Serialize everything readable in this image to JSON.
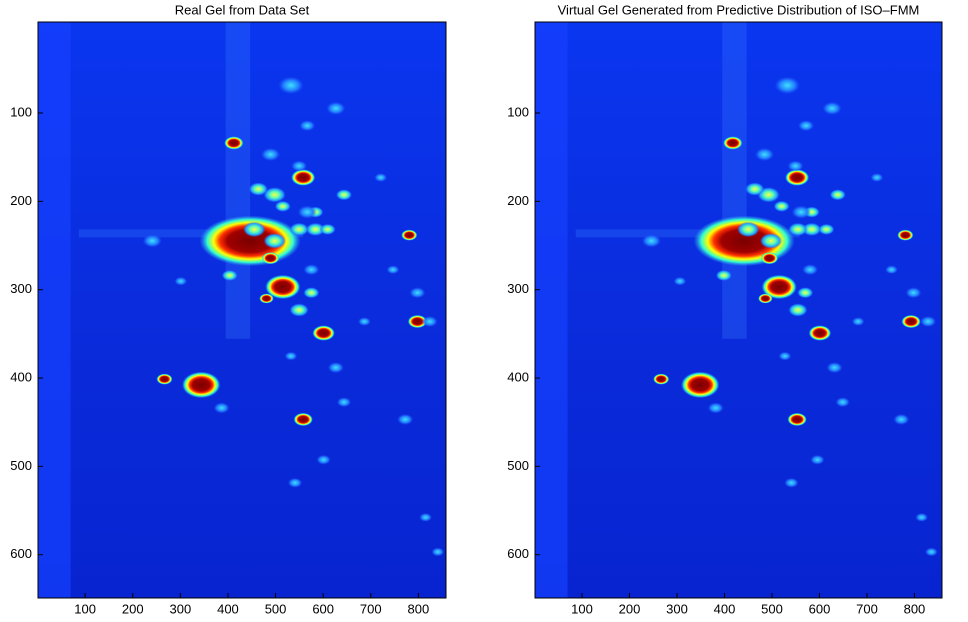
{
  "chart_data": [
    {
      "type": "heatmap",
      "title": "Real Gel from Data Set",
      "xlim": [
        1,
        858
      ],
      "ylim": [
        649,
        -3
      ],
      "xticks": [
        100,
        200,
        300,
        400,
        500,
        600,
        700,
        800
      ],
      "yticks": [
        100,
        200,
        300,
        400,
        500,
        600
      ]
    },
    {
      "type": "heatmap",
      "title": "Virtual Gel Generated from Predictive Distribution of ISO–FMM",
      "xlim": [
        1,
        858
      ],
      "ylim": [
        649,
        -3
      ],
      "xticks": [
        100,
        200,
        300,
        400,
        500,
        600,
        700,
        800
      ],
      "yticks": [
        100,
        200,
        300,
        400,
        500,
        600
      ]
    }
  ]
}
